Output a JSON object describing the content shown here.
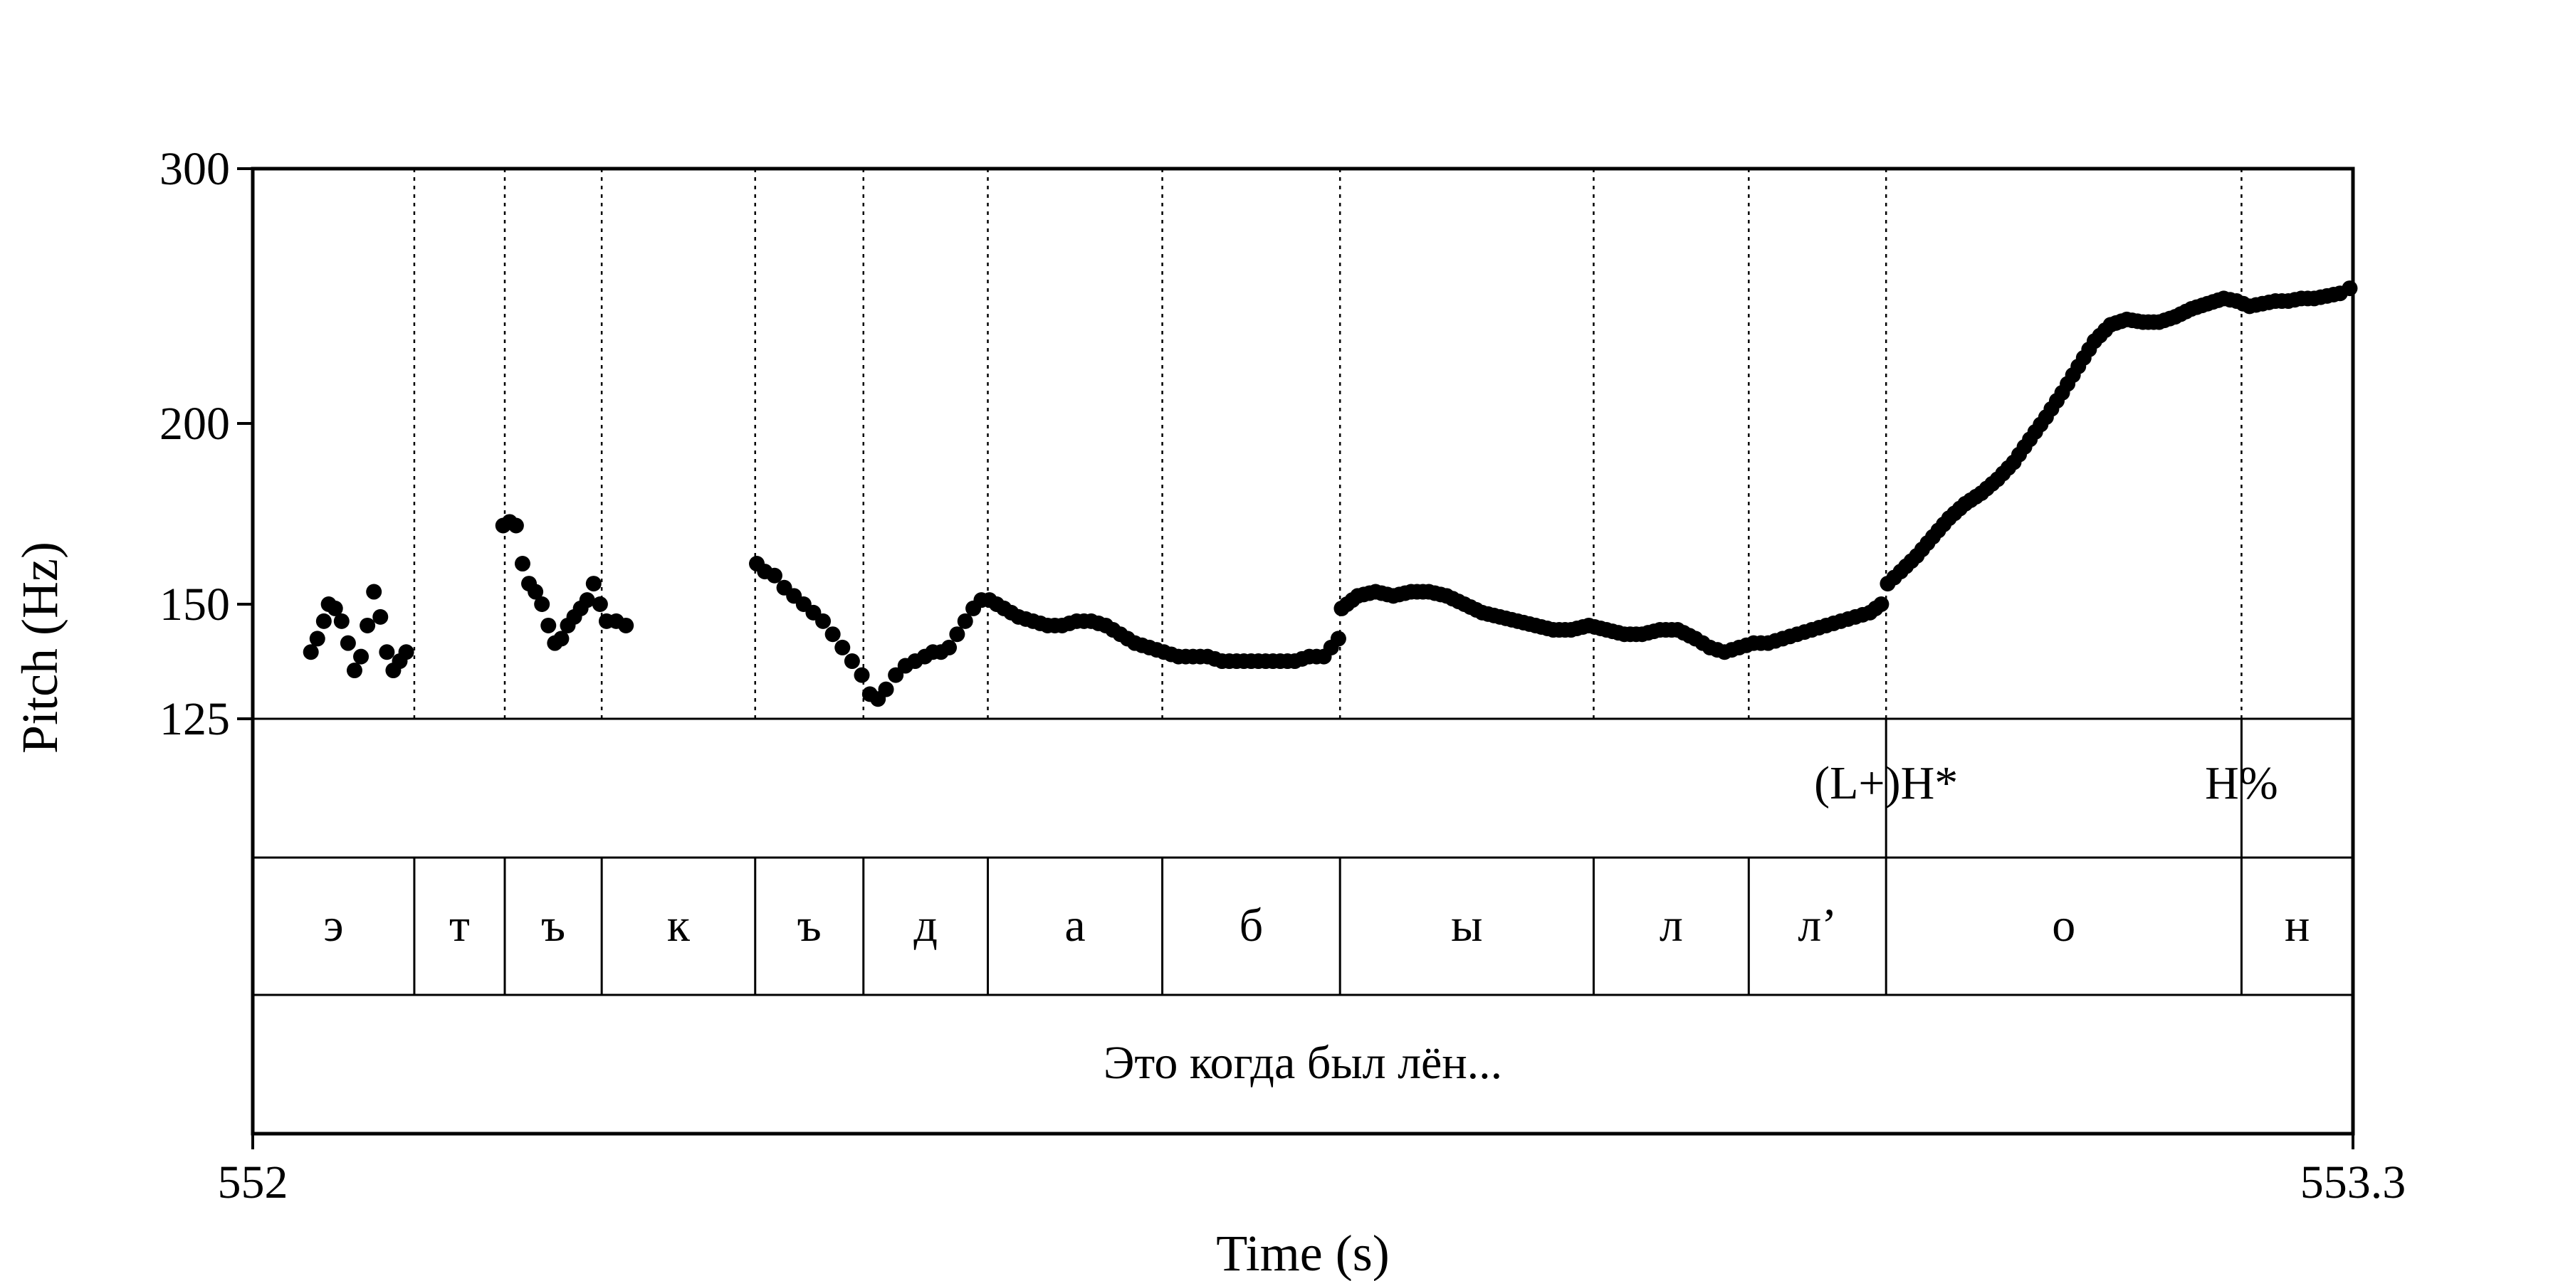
{
  "chart_data": {
    "type": "scatter",
    "title": "",
    "xlabel": "Time (s)",
    "ylabel": "Pitch (Hz)",
    "xlim": [
      552,
      553.3
    ],
    "ylim": [
      125,
      300
    ],
    "yscale": "log",
    "x_ticks": [
      "552",
      "553.3"
    ],
    "y_ticks": [
      {
        "value": 125,
        "label": "125"
      },
      {
        "value": 150,
        "label": "150"
      },
      {
        "value": 200,
        "label": "200"
      },
      {
        "value": 300,
        "label": "300"
      }
    ],
    "boundaries": [
      552.1,
      552.156,
      552.216,
      552.311,
      552.378,
      552.455,
      552.563,
      552.673,
      552.83,
      552.926,
      553.011,
      553.231
    ],
    "tones": [
      {
        "t": 553.011,
        "label": "(L+)H*"
      },
      {
        "t": 553.231,
        "label": "H%"
      }
    ],
    "segments": [
      {
        "start": 552.0,
        "end": 552.1,
        "label": "э"
      },
      {
        "start": 552.1,
        "end": 552.156,
        "label": "т"
      },
      {
        "start": 552.156,
        "end": 552.216,
        "label": "ъ"
      },
      {
        "start": 552.216,
        "end": 552.311,
        "label": "к"
      },
      {
        "start": 552.311,
        "end": 552.378,
        "label": "ъ"
      },
      {
        "start": 552.378,
        "end": 552.455,
        "label": "д"
      },
      {
        "start": 552.455,
        "end": 552.563,
        "label": "а"
      },
      {
        "start": 552.563,
        "end": 552.673,
        "label": "б"
      },
      {
        "start": 552.673,
        "end": 552.83,
        "label": "ы"
      },
      {
        "start": 552.83,
        "end": 552.926,
        "label": "л"
      },
      {
        "start": 552.926,
        "end": 553.011,
        "label": "л’"
      },
      {
        "start": 553.011,
        "end": 553.231,
        "label": "о"
      },
      {
        "start": 553.231,
        "end": 553.3,
        "label": "н"
      }
    ],
    "words": [
      {
        "start": 552.0,
        "end": 553.3,
        "label": "Это когда был лён..."
      }
    ],
    "contours": [
      [
        [
          552.036,
          139
        ],
        [
          552.04,
          142
        ],
        [
          552.044,
          146
        ],
        [
          552.047,
          150
        ],
        [
          552.051,
          149
        ],
        [
          552.055,
          146
        ],
        [
          552.059,
          141
        ],
        [
          552.063,
          135
        ],
        [
          552.067,
          138
        ],
        [
          552.071,
          145
        ],
        [
          552.075,
          153
        ],
        [
          552.079,
          147
        ],
        [
          552.083,
          139
        ],
        [
          552.087,
          135
        ],
        [
          552.091,
          137
        ],
        [
          552.095,
          139
        ]
      ],
      [
        [
          552.155,
          170
        ],
        [
          552.159,
          171
        ],
        [
          552.163,
          170
        ],
        [
          552.167,
          160
        ],
        [
          552.171,
          155
        ],
        [
          552.175,
          153
        ],
        [
          552.179,
          150
        ],
        [
          552.183,
          145
        ],
        [
          552.187,
          141
        ],
        [
          552.191,
          142
        ],
        [
          552.195,
          145
        ],
        [
          552.199,
          147
        ],
        [
          552.203,
          149
        ],
        [
          552.207,
          151
        ],
        [
          552.211,
          155
        ],
        [
          552.215,
          150
        ],
        [
          552.219,
          146
        ],
        [
          552.225,
          146
        ],
        [
          552.231,
          145
        ]
      ],
      [
        [
          552.312,
          160
        ],
        [
          552.317,
          158
        ],
        [
          552.323,
          157
        ],
        [
          552.329,
          154
        ],
        [
          552.335,
          152
        ],
        [
          552.341,
          150
        ],
        [
          552.347,
          148
        ],
        [
          552.353,
          146
        ],
        [
          552.359,
          143
        ],
        [
          552.365,
          140
        ],
        [
          552.371,
          137
        ],
        [
          552.377,
          134
        ],
        [
          552.382,
          130
        ],
        [
          552.387,
          129
        ],
        [
          552.392,
          131
        ],
        [
          552.398,
          134
        ],
        [
          552.404,
          136
        ],
        [
          552.41,
          137
        ],
        [
          552.416,
          138
        ],
        [
          552.421,
          139
        ],
        [
          552.426,
          139
        ],
        [
          552.431,
          140
        ],
        [
          552.436,
          143
        ],
        [
          552.441,
          146
        ],
        [
          552.446,
          149
        ],
        [
          552.451,
          151
        ]
      ],
      [
        [
          552.456,
          151
        ],
        [
          552.465,
          149
        ],
        [
          552.474,
          147
        ],
        [
          552.483,
          146
        ],
        [
          552.492,
          145
        ],
        [
          552.501,
          145
        ],
        [
          552.51,
          146
        ],
        [
          552.519,
          146
        ],
        [
          552.528,
          145
        ],
        [
          552.537,
          143
        ],
        [
          552.546,
          141
        ],
        [
          552.555,
          140
        ],
        [
          552.564,
          139
        ],
        [
          552.573,
          138
        ],
        [
          552.582,
          138
        ],
        [
          552.591,
          138
        ],
        [
          552.6,
          137
        ],
        [
          552.609,
          137
        ],
        [
          552.618,
          137
        ],
        [
          552.627,
          137
        ],
        [
          552.636,
          137
        ],
        [
          552.645,
          137
        ],
        [
          552.654,
          138
        ],
        [
          552.663,
          138
        ],
        [
          552.672,
          142
        ]
      ],
      [
        [
          552.674,
          149
        ],
        [
          552.684,
          152
        ],
        [
          552.695,
          153
        ],
        [
          552.706,
          152
        ],
        [
          552.717,
          153
        ],
        [
          552.728,
          153
        ],
        [
          552.739,
          152
        ],
        [
          552.75,
          150
        ],
        [
          552.761,
          148
        ],
        [
          552.772,
          147
        ],
        [
          552.783,
          146
        ],
        [
          552.794,
          145
        ],
        [
          552.805,
          144
        ],
        [
          552.816,
          144
        ],
        [
          552.827,
          145
        ],
        [
          552.838,
          144
        ],
        [
          552.849,
          143
        ],
        [
          552.86,
          143
        ],
        [
          552.871,
          144
        ],
        [
          552.882,
          144
        ],
        [
          552.893,
          142
        ],
        [
          552.902,
          140
        ],
        [
          552.911,
          139
        ],
        [
          552.92,
          140
        ],
        [
          552.929,
          141
        ],
        [
          552.938,
          141
        ],
        [
          552.947,
          142
        ],
        [
          552.956,
          143
        ],
        [
          552.965,
          144
        ],
        [
          552.974,
          145
        ],
        [
          552.983,
          146
        ],
        [
          552.992,
          147
        ],
        [
          553.001,
          148
        ],
        [
          553.008,
          150
        ]
      ],
      [
        [
          553.012,
          155
        ],
        [
          553.02,
          158
        ],
        [
          553.03,
          162
        ],
        [
          553.04,
          167
        ],
        [
          553.05,
          172
        ],
        [
          553.06,
          176
        ],
        [
          553.07,
          179
        ],
        [
          553.08,
          183
        ],
        [
          553.09,
          188
        ],
        [
          553.1,
          195
        ],
        [
          553.11,
          202
        ],
        [
          553.12,
          210
        ],
        [
          553.13,
          219
        ],
        [
          553.14,
          228
        ],
        [
          553.15,
          234
        ],
        [
          553.16,
          236
        ],
        [
          553.17,
          235
        ],
        [
          553.18,
          235
        ],
        [
          553.19,
          237
        ],
        [
          553.2,
          240
        ],
        [
          553.21,
          242
        ],
        [
          553.22,
          244
        ],
        [
          553.228,
          243
        ],
        [
          553.236,
          241
        ],
        [
          553.244,
          242
        ],
        [
          553.252,
          243
        ],
        [
          553.26,
          243
        ],
        [
          553.268,
          244
        ],
        [
          553.276,
          244
        ],
        [
          553.284,
          245
        ],
        [
          553.292,
          246
        ],
        [
          553.298,
          248
        ]
      ]
    ],
    "grid": false,
    "legend": "none"
  }
}
